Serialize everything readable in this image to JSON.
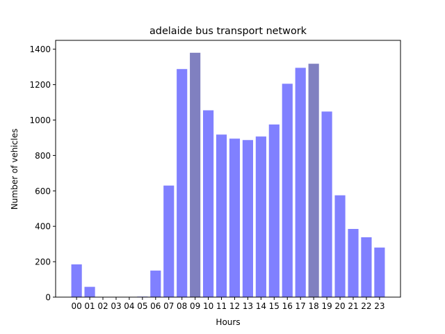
{
  "chart_data": {
    "type": "bar",
    "title": "adelaide bus transport network",
    "xlabel": "Hours",
    "ylabel": "Number of vehicles",
    "categories": [
      "00",
      "01",
      "02",
      "03",
      "04",
      "05",
      "06",
      "07",
      "08",
      "09",
      "10",
      "11",
      "12",
      "13",
      "14",
      "15",
      "16",
      "17",
      "18",
      "19",
      "20",
      "21",
      "22",
      "23"
    ],
    "values": [
      185,
      58,
      0,
      0,
      0,
      3,
      150,
      630,
      1288,
      1380,
      1055,
      918,
      895,
      887,
      907,
      975,
      1205,
      1295,
      1318,
      1048,
      575,
      385,
      338,
      280
    ],
    "highlight_categories": [
      "09",
      "18"
    ],
    "ylim": [
      0,
      1450
    ],
    "yticks": [
      0,
      200,
      400,
      600,
      800,
      1000,
      1200,
      1400
    ],
    "grid": false,
    "colors": {
      "bar": "#8080ff",
      "bar_highlight": "#8080c0",
      "axis": "#000000"
    }
  }
}
